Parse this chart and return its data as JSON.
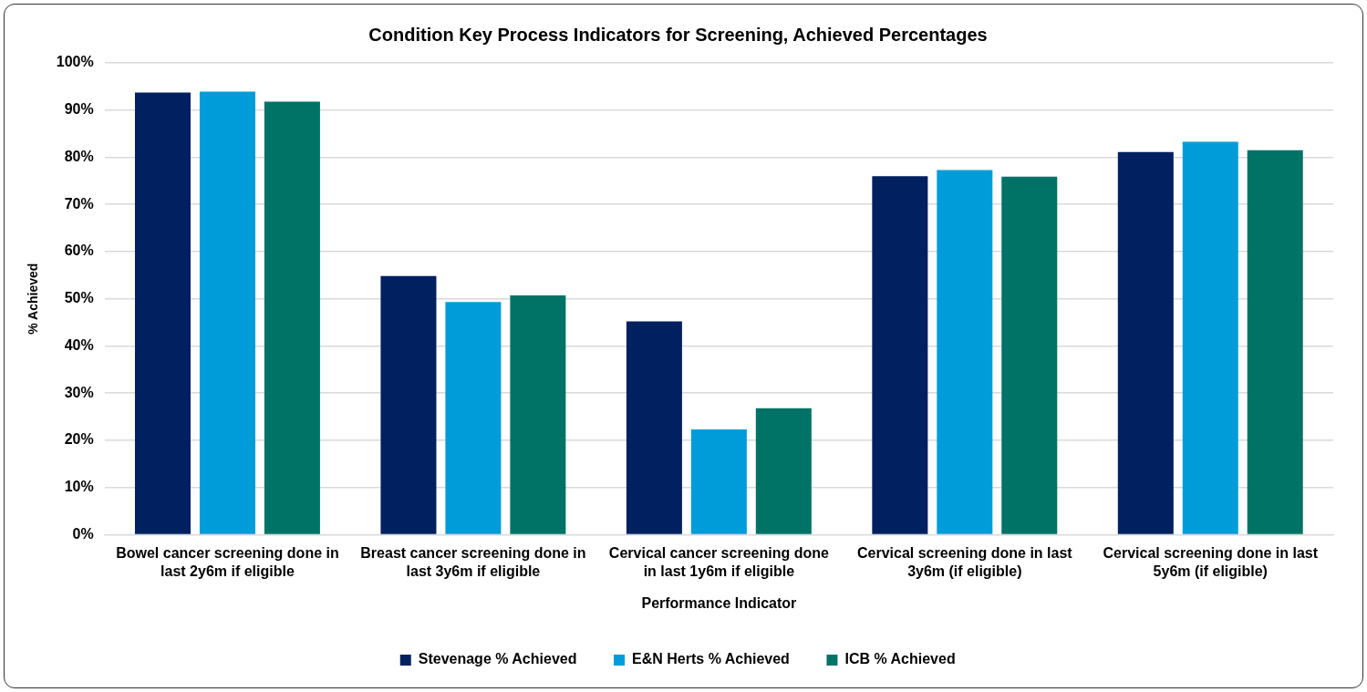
{
  "chart_data": {
    "type": "bar",
    "title": "Condition Key Process Indicators for Screening, Achieved Percentages",
    "xlabel": "Performance Indicator",
    "ylabel": "% Achieved",
    "categories": [
      "Bowel cancer screening done in last 2y6m if eligible",
      "Breast cancer screening done in last 3y6m if eligible",
      "Cervical cancer screening done in last 1y6m if eligible",
      "Cervical screening done in last 3y6m (if eligible)",
      "Cervical screening done in last 5y6m (if eligible)"
    ],
    "series": [
      {
        "name": "Stevenage % Achieved",
        "color": "#002060",
        "values": [
          93.7,
          54.8,
          45.2,
          76.0,
          81.1
        ]
      },
      {
        "name": "E&N Herts % Achieved",
        "color": "#009cd9",
        "values": [
          93.9,
          49.3,
          22.3,
          77.3,
          83.3
        ]
      },
      {
        "name": "ICB % Achieved",
        "color": "#007366",
        "values": [
          91.8,
          50.7,
          26.8,
          75.9,
          81.5
        ]
      }
    ],
    "ylim": [
      0,
      100
    ],
    "yticks": [
      {
        "value": 0,
        "label": "0%"
      },
      {
        "value": 10,
        "label": "10%"
      },
      {
        "value": 20,
        "label": "20%"
      },
      {
        "value": 30,
        "label": "30%"
      },
      {
        "value": 40,
        "label": "40%"
      },
      {
        "value": 50,
        "label": "50%"
      },
      {
        "value": 60,
        "label": "60%"
      },
      {
        "value": 70,
        "label": "70%"
      },
      {
        "value": 80,
        "label": "80%"
      },
      {
        "value": 90,
        "label": "90%"
      },
      {
        "value": 100,
        "label": "100%"
      }
    ],
    "grid": "y",
    "legend": "bottom"
  }
}
